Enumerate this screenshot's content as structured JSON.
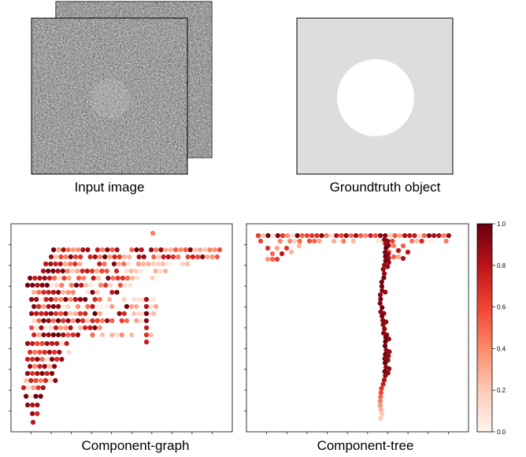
{
  "figure": {
    "panels": {
      "input_image": {
        "caption": "Input image"
      },
      "groundtruth_object": {
        "caption": "Groundtruth object"
      },
      "component_graph": {
        "caption": "Component-graph"
      },
      "component_tree": {
        "caption": "Component-tree"
      }
    },
    "colorbar": {
      "ticks": [
        "0.0",
        "0.2",
        "0.4",
        "0.6",
        "0.8",
        "1.0"
      ],
      "colormap": [
        "#fff5f0",
        "#fdcab5",
        "#fc8a6a",
        "#f14432",
        "#bc141a",
        "#67000d"
      ]
    }
  },
  "chart_data": [
    {
      "type": "scatter",
      "name": "component-graph",
      "title": "",
      "xlabel": "",
      "ylabel": "",
      "xlim": [
        0,
        40
      ],
      "ylim": [
        0,
        40
      ],
      "color_scale": [
        0,
        1
      ],
      "points": "hexbin-like points, value 0-1 encoded as color"
    },
    {
      "type": "scatter",
      "name": "component-tree",
      "title": "",
      "xlabel": "",
      "ylabel": "",
      "xlim": [
        0,
        40
      ],
      "ylim": [
        0,
        40
      ],
      "color_scale": [
        0,
        1
      ],
      "points": "trunk and top row, value 0-1 encoded as color"
    }
  ]
}
